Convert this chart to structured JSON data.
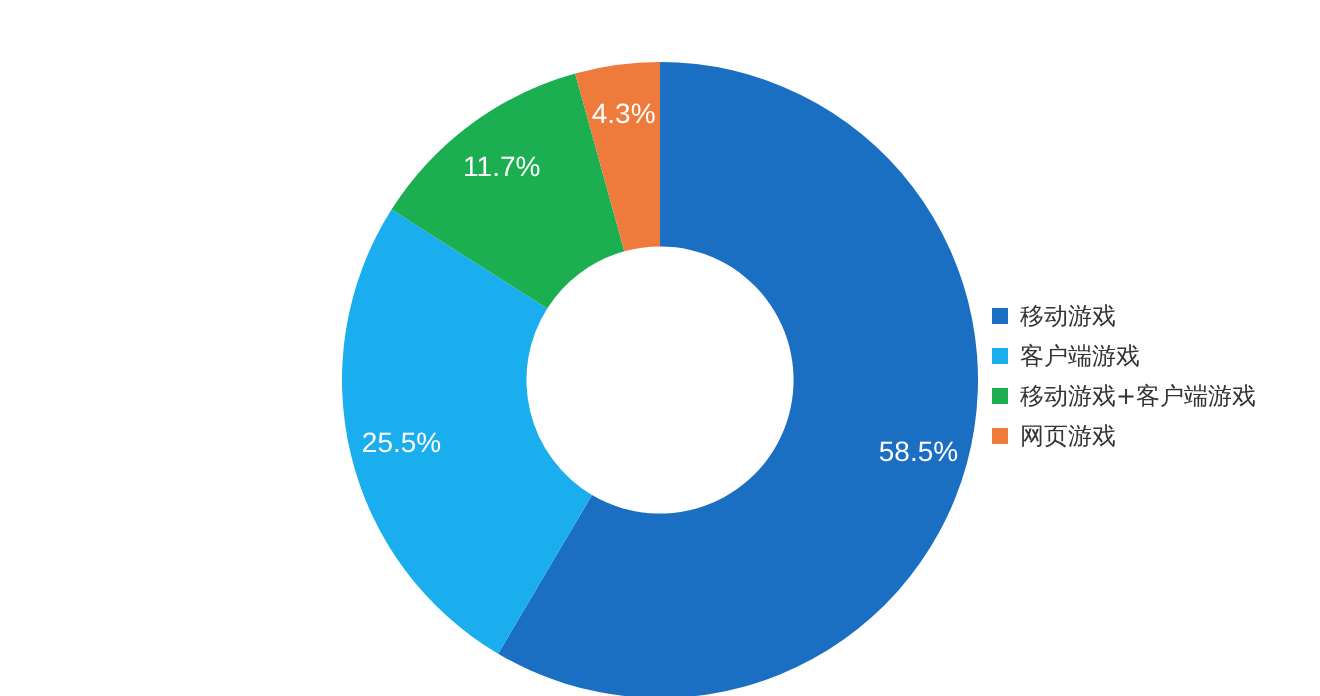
{
  "chart_data": {
    "type": "donut",
    "categories": [
      "移动游戏",
      "客户端游戏",
      "移动游戏+客户端游戏",
      "网页游戏"
    ],
    "values": [
      58.5,
      25.5,
      11.7,
      4.3
    ],
    "colors": [
      "#1b6fc2",
      "#1aaeef",
      "#1caf51",
      "#ee7a3b"
    ],
    "value_labels": [
      "58.5%",
      "25.5%",
      "11.7%",
      "4.3%"
    ],
    "legend": "right"
  }
}
